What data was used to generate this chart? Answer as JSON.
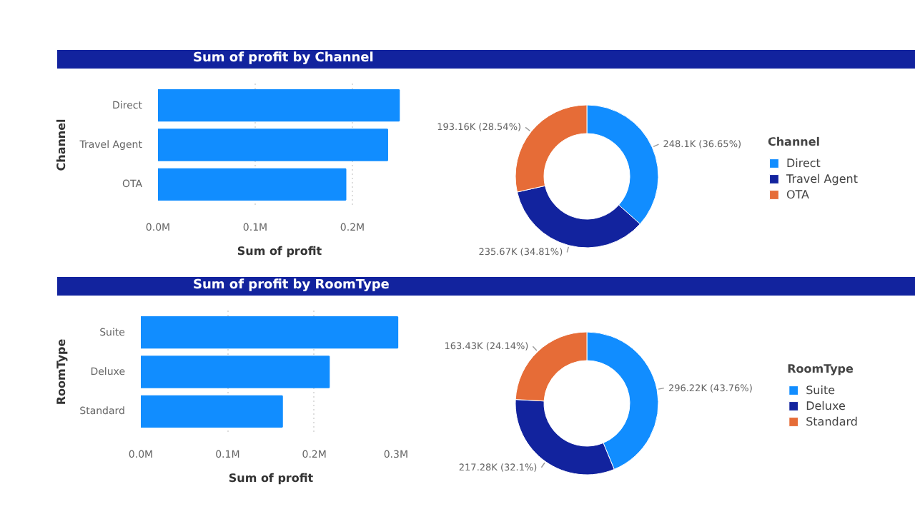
{
  "chart_data": [
    {
      "type": "bar",
      "orientation": "horizontal",
      "title": "Sum of profit by Channel",
      "xlabel": "Sum of profit",
      "ylabel": "Channel",
      "categories": [
        "Direct",
        "Travel Agent",
        "OTA"
      ],
      "values": [
        0.248,
        0.236,
        0.193
      ],
      "color": "#118dff",
      "xlim": [
        0,
        0.25
      ],
      "xticks": [
        {
          "value": 0,
          "label": "0.0M"
        },
        {
          "value": 0.1,
          "label": "0.1M"
        },
        {
          "value": 0.2,
          "label": "0.2M"
        }
      ],
      "grid": "x"
    },
    {
      "type": "donut",
      "legend_title": "Channel",
      "categories": [
        "Direct",
        "Travel Agent",
        "OTA"
      ],
      "values": [
        36.65,
        34.81,
        28.54
      ],
      "colors": [
        "#118dff",
        "#12239e",
        "#e66c37"
      ],
      "value_labels": [
        "248.1K (36.65%)",
        "235.67K (34.81%)",
        "193.16K (28.54%)"
      ],
      "legend": "right"
    },
    {
      "type": "bar",
      "orientation": "horizontal",
      "title": "Sum of profit by RoomType",
      "xlabel": "Sum of profit",
      "ylabel": "RoomType",
      "categories": [
        "Suite",
        "Deluxe",
        "Standard"
      ],
      "values": [
        0.296,
        0.217,
        0.163
      ],
      "color": "#118dff",
      "xlim": [
        0,
        0.3
      ],
      "xticks": [
        {
          "value": 0,
          "label": "0.0M"
        },
        {
          "value": 0.1,
          "label": "0.1M"
        },
        {
          "value": 0.2,
          "label": "0.2M"
        },
        {
          "value": 0.3,
          "label": "0.3M"
        }
      ],
      "grid": "x"
    },
    {
      "type": "donut",
      "legend_title": "RoomType",
      "categories": [
        "Suite",
        "Deluxe",
        "Standard"
      ],
      "values": [
        43.76,
        32.1,
        24.14
      ],
      "colors": [
        "#118dff",
        "#12239e",
        "#e66c37"
      ],
      "value_labels": [
        "296.22K (43.76%)",
        "217.28K (32.1%)",
        "163.43K (24.14%)"
      ],
      "legend": "right"
    }
  ]
}
